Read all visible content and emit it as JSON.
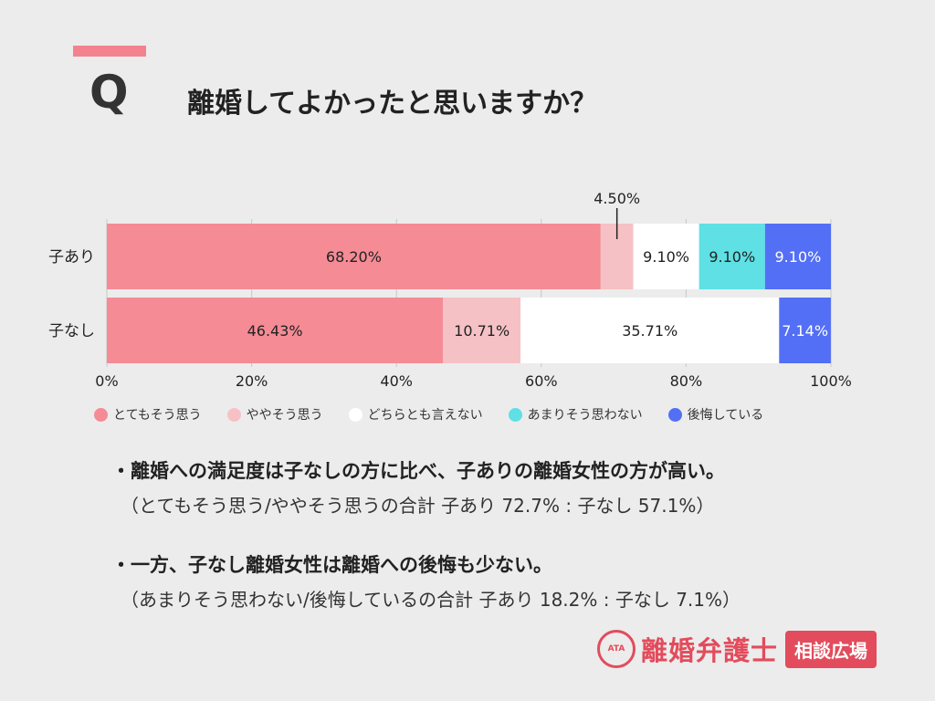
{
  "header": {
    "q_mark": "Q",
    "question": "離婚してよかったと思いますか？"
  },
  "colors": {
    "とてもそう思う": "#f58b95",
    "ややそう思う": "#f6c1c5",
    "どちらとも言えない": "#ffffff",
    "あまりそう思わない": "#5ee0e5",
    "後悔している": "#536ff5"
  },
  "chart_data": {
    "type": "bar",
    "orientation": "horizontal-stacked",
    "categories": [
      "子あり",
      "子なし"
    ],
    "series": [
      {
        "name": "とてもそう思う",
        "values": [
          68.2,
          46.43
        ],
        "labels": [
          "68.20%",
          "46.43%"
        ]
      },
      {
        "name": "ややそう思う",
        "values": [
          4.5,
          10.71
        ],
        "labels": [
          "4.50%",
          "10.71%"
        ]
      },
      {
        "name": "どちらとも言えない",
        "values": [
          9.1,
          35.71
        ],
        "labels": [
          "9.10%",
          "35.71%"
        ]
      },
      {
        "name": "あまりそう思わない",
        "values": [
          9.1,
          0
        ],
        "labels": [
          "9.10%",
          ""
        ]
      },
      {
        "name": "後悔している",
        "values": [
          9.1,
          7.14
        ],
        "labels": [
          "9.10%",
          "7.14%"
        ]
      }
    ],
    "xlim": [
      0,
      100
    ],
    "x_ticks": [
      "0%",
      "20%",
      "40%",
      "60%",
      "80%",
      "100%"
    ],
    "grid": true,
    "legend": "bottom"
  },
  "notes": [
    {
      "head": "・離婚への満足度は子なしの方に比べ、子ありの離婚女性の方が高い。",
      "sub": "（とてもそう思う/ややそう思うの合計 子あり 72.7% : 子なし 57.1%）"
    },
    {
      "head": "・一方、子なし離婚女性は離婚への後悔も少ない。",
      "sub": "（あまりそう思わない/後悔しているの合計  子あり 18.2% : 子なし 7.1%）"
    }
  ],
  "logo": {
    "seal_text": "ATA",
    "name": "離婚弁護士",
    "badge": "相談広場"
  }
}
